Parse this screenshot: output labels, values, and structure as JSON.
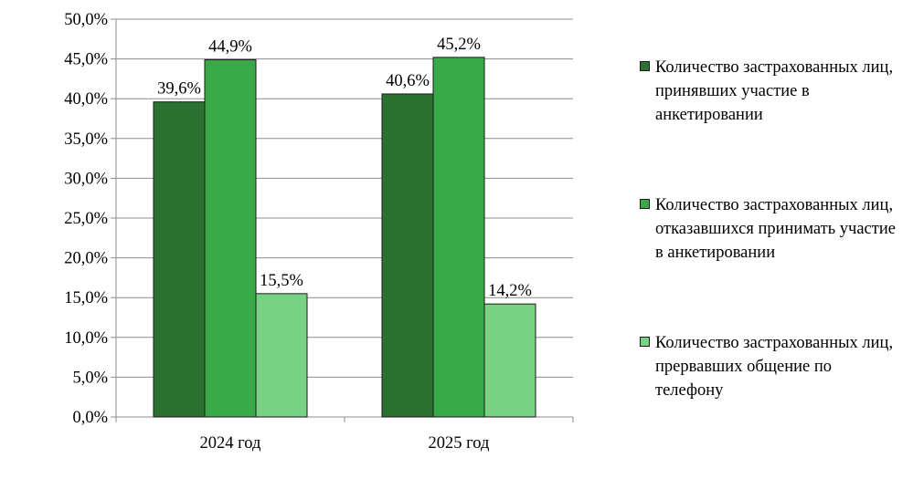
{
  "chart_data": {
    "type": "bar",
    "categories": [
      "2024 год",
      "2025 год"
    ],
    "series": [
      {
        "name": "Количество застрахованных лиц, принявших участие в анкетировании",
        "values": [
          39.6,
          40.6
        ],
        "labels": [
          "39,6%",
          "40,6%"
        ],
        "color": "#2a7132"
      },
      {
        "name": "Количество застрахованных лиц, отказавшихся принимать участие в анкетировании",
        "values": [
          44.9,
          45.2
        ],
        "labels": [
          "44,9%",
          "45,2%"
        ],
        "color": "#3aaa48"
      },
      {
        "name": "Количество застрахованных лиц, прервавших общение по телефону",
        "values": [
          15.5,
          14.2
        ],
        "labels": [
          "15,5%",
          "14,2%"
        ],
        "color": "#78d283"
      }
    ],
    "ylim": [
      0,
      50
    ],
    "yticks": [
      "0,0%",
      "5,0%",
      "10,0%",
      "15,0%",
      "20,0%",
      "25,0%",
      "30,0%",
      "35,0%",
      "40,0%",
      "45,0%",
      "50,0%"
    ],
    "grid": true,
    "legend_position": "right",
    "title": "",
    "xlabel": "",
    "ylabel": ""
  }
}
